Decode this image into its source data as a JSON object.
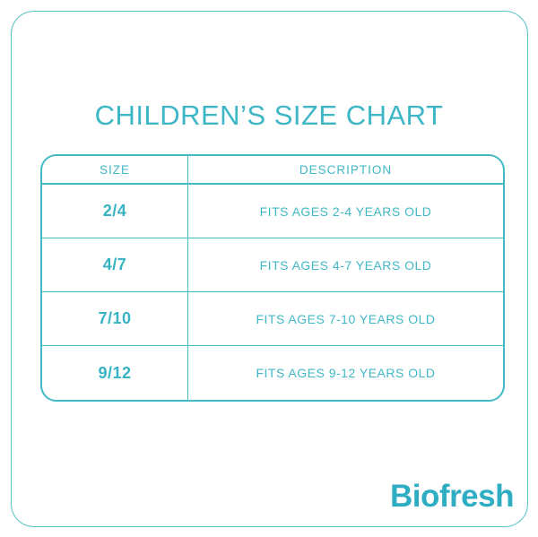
{
  "page": {
    "title": "CHILDREN’S SIZE CHART",
    "brand": "Biofresh"
  },
  "table": {
    "headers": [
      "SIZE",
      "DESCRIPTION"
    ],
    "rows": [
      {
        "size": "2/4",
        "description": "FITS AGES 2-4 YEARS OLD"
      },
      {
        "size": "4/7",
        "description": "FITS AGES 4-7 YEARS OLD"
      },
      {
        "size": "7/10",
        "description": "FITS AGES 7-10 YEARS OLD"
      },
      {
        "size": "9/12",
        "description": "FITS AGES 9-12 YEARS OLD"
      }
    ]
  },
  "colors": {
    "accent_teal": "#43b9c6",
    "logo_teal": "#2fadc2",
    "background": "#ffffff"
  }
}
